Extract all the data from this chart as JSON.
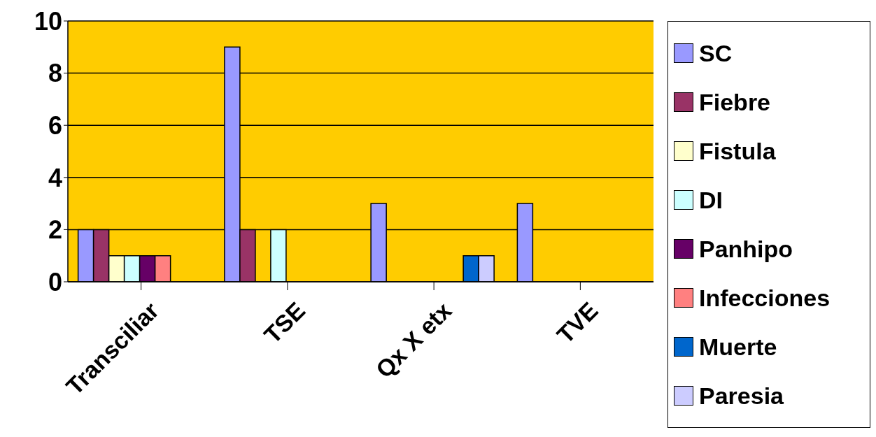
{
  "chart_data": {
    "type": "bar",
    "categories": [
      "Transciliar",
      "TSE",
      "Qx X etx",
      "TVE"
    ],
    "series": [
      {
        "name": "SC",
        "color": "#9999ff",
        "values": [
          2,
          9,
          3,
          3
        ]
      },
      {
        "name": "Fiebre",
        "color": "#993366",
        "values": [
          2,
          2,
          0,
          0
        ]
      },
      {
        "name": "Fistula",
        "color": "#ffffcc",
        "values": [
          1,
          0,
          0,
          0
        ]
      },
      {
        "name": "DI",
        "color": "#ccffff",
        "values": [
          1,
          2,
          0,
          0
        ]
      },
      {
        "name": "Panhipo",
        "color": "#660066",
        "values": [
          1,
          0,
          0,
          0
        ]
      },
      {
        "name": "Infecciones",
        "color": "#ff8080",
        "values": [
          1,
          0,
          0,
          0
        ]
      },
      {
        "name": "Muerte",
        "color": "#0066cc",
        "values": [
          0,
          0,
          1,
          0
        ]
      },
      {
        "name": "Paresia",
        "color": "#ccccff",
        "values": [
          0,
          0,
          1,
          0
        ]
      }
    ],
    "ylim": [
      0,
      10
    ],
    "yticks": [
      0,
      2,
      4,
      6,
      8,
      10
    ],
    "grid": "y",
    "legend": "right"
  }
}
